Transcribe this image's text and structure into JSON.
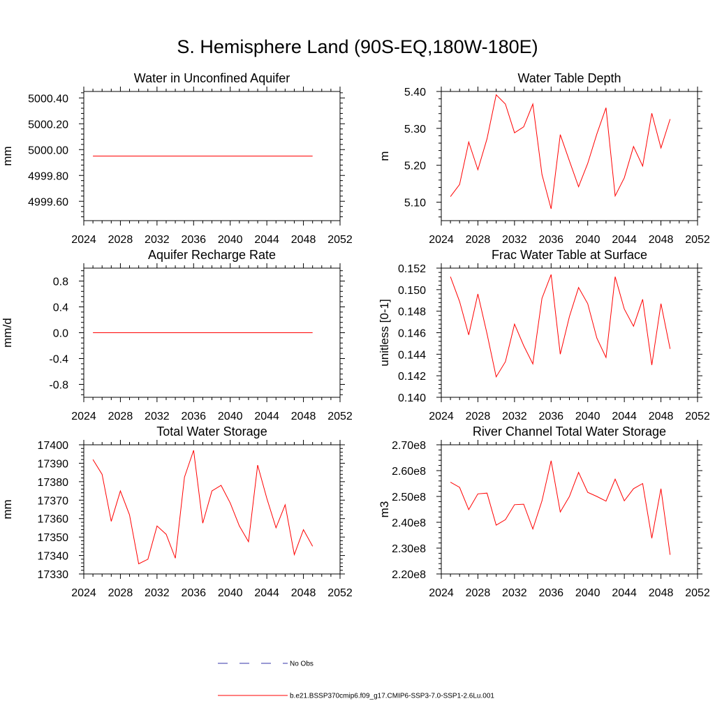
{
  "title": "S. Hemisphere Land (90S-EQ,180W-180E)",
  "colors": {
    "model_line": "#ff0000",
    "obs_line": "#3333aa",
    "axis": "#000000"
  },
  "legend": [
    {
      "label": "No Obs",
      "style": "dashed",
      "color": "#3333aa"
    },
    {
      "label": "b.e21.BSSP370cmip6.f09_g17.CMIP6-SSP3-7.0-SSP1-2.6Lu.001",
      "style": "solid",
      "color": "#ff0000"
    }
  ],
  "chart_data": [
    {
      "type": "line",
      "title": "Water in Unconfined Aquifer",
      "ylabel": "mm",
      "xlim": [
        2024,
        2052
      ],
      "ylim": [
        4999.45,
        5000.45
      ],
      "xticks": [
        2024,
        2028,
        2032,
        2036,
        2040,
        2044,
        2048,
        2052
      ],
      "yticks": [
        4999.6,
        4999.8,
        5000.0,
        5000.2,
        5000.4
      ],
      "ytick_labels": [
        "4999.60",
        "4999.80",
        "5000.00",
        "5000.20",
        "5000.40"
      ],
      "x": [
        2025,
        2026,
        2027,
        2028,
        2029,
        2030,
        2031,
        2032,
        2033,
        2034,
        2035,
        2036,
        2037,
        2038,
        2039,
        2040,
        2041,
        2042,
        2043,
        2044,
        2045,
        2046,
        2047,
        2048,
        2049
      ],
      "series": [
        {
          "name": "b.e21.BSSP370cmip6.f09_g17.CMIP6-SSP3-7.0-SSP1-2.6Lu.001",
          "values": [
            4999.95,
            4999.95,
            4999.95,
            4999.95,
            4999.95,
            4999.95,
            4999.95,
            4999.95,
            4999.95,
            4999.95,
            4999.95,
            4999.95,
            4999.95,
            4999.95,
            4999.95,
            4999.95,
            4999.95,
            4999.95,
            4999.95,
            4999.95,
            4999.95,
            4999.95,
            4999.95,
            4999.95,
            4999.95
          ]
        }
      ]
    },
    {
      "type": "line",
      "title": "Water Table Depth",
      "ylabel": "m",
      "xlim": [
        2024,
        2052
      ],
      "ylim": [
        5.05,
        5.4
      ],
      "xticks": [
        2024,
        2028,
        2032,
        2036,
        2040,
        2044,
        2048,
        2052
      ],
      "yticks": [
        5.1,
        5.2,
        5.3,
        5.4
      ],
      "ytick_labels": [
        "5.10",
        "5.20",
        "5.30",
        "5.40"
      ],
      "x": [
        2025,
        2026,
        2027,
        2028,
        2029,
        2030,
        2031,
        2032,
        2033,
        2034,
        2035,
        2036,
        2037,
        2038,
        2039,
        2040,
        2041,
        2042,
        2043,
        2044,
        2045,
        2046,
        2047,
        2048,
        2049
      ],
      "series": [
        {
          "name": "b.e21.BSSP370cmip6.f09_g17.CMIP6-SSP3-7.0-SSP1-2.6Lu.001",
          "values": [
            5.115,
            5.148,
            5.263,
            5.188,
            5.272,
            5.391,
            5.366,
            5.288,
            5.304,
            5.366,
            5.175,
            5.082,
            5.283,
            5.212,
            5.142,
            5.205,
            5.285,
            5.356,
            5.117,
            5.166,
            5.251,
            5.198,
            5.341,
            5.247,
            5.325
          ]
        }
      ]
    },
    {
      "type": "line",
      "title": "Aquifer Recharge Rate",
      "ylabel": "mm/d",
      "xlim": [
        2024,
        2052
      ],
      "ylim": [
        -1.0,
        1.0
      ],
      "xticks": [
        2024,
        2028,
        2032,
        2036,
        2040,
        2044,
        2048,
        2052
      ],
      "yticks": [
        -0.8,
        -0.4,
        0.0,
        0.4,
        0.8
      ],
      "ytick_labels": [
        "-0.8",
        "-0.4",
        "0.0",
        "0.4",
        "0.8"
      ],
      "x": [
        2025,
        2026,
        2027,
        2028,
        2029,
        2030,
        2031,
        2032,
        2033,
        2034,
        2035,
        2036,
        2037,
        2038,
        2039,
        2040,
        2041,
        2042,
        2043,
        2044,
        2045,
        2046,
        2047,
        2048,
        2049
      ],
      "series": [
        {
          "name": "b.e21.BSSP370cmip6.f09_g17.CMIP6-SSP3-7.0-SSP1-2.6Lu.001",
          "values": [
            0,
            0,
            0,
            0,
            0,
            0,
            0,
            0,
            0,
            0,
            0,
            0,
            0,
            0,
            0,
            0,
            0,
            0,
            0,
            0,
            0,
            0,
            0,
            0,
            0
          ]
        }
      ]
    },
    {
      "type": "line",
      "title": "Frac Water Table at Surface",
      "ylabel": "unitless [0-1]",
      "xlim": [
        2024,
        2052
      ],
      "ylim": [
        0.14,
        0.152
      ],
      "xticks": [
        2024,
        2028,
        2032,
        2036,
        2040,
        2044,
        2048,
        2052
      ],
      "yticks": [
        0.14,
        0.142,
        0.144,
        0.146,
        0.148,
        0.15,
        0.152
      ],
      "ytick_labels": [
        "0.140",
        "0.142",
        "0.144",
        "0.146",
        "0.148",
        "0.150",
        "0.152"
      ],
      "x": [
        2025,
        2026,
        2027,
        2028,
        2029,
        2030,
        2031,
        2032,
        2033,
        2034,
        2035,
        2036,
        2037,
        2038,
        2039,
        2040,
        2041,
        2042,
        2043,
        2044,
        2045,
        2046,
        2047,
        2048,
        2049
      ],
      "series": [
        {
          "name": "b.e21.BSSP370cmip6.f09_g17.CMIP6-SSP3-7.0-SSP1-2.6Lu.001",
          "values": [
            0.1512,
            0.1489,
            0.1458,
            0.1496,
            0.1459,
            0.1419,
            0.1433,
            0.1468,
            0.1448,
            0.1431,
            0.1492,
            0.1514,
            0.144,
            0.1475,
            0.1502,
            0.1487,
            0.1455,
            0.1437,
            0.1512,
            0.1482,
            0.1466,
            0.1491,
            0.143,
            0.1487,
            0.1445
          ]
        }
      ]
    },
    {
      "type": "line",
      "title": "Total Water Storage",
      "ylabel": "mm",
      "xlim": [
        2024,
        2052
      ],
      "ylim": [
        17330,
        17400
      ],
      "xticks": [
        2024,
        2028,
        2032,
        2036,
        2040,
        2044,
        2048,
        2052
      ],
      "yticks": [
        17330,
        17340,
        17350,
        17360,
        17370,
        17380,
        17390,
        17400
      ],
      "ytick_labels": [
        "17330",
        "17340",
        "17350",
        "17360",
        "17370",
        "17380",
        "17390",
        "17400"
      ],
      "x": [
        2025,
        2026,
        2027,
        2028,
        2029,
        2030,
        2031,
        2032,
        2033,
        2034,
        2035,
        2036,
        2037,
        2038,
        2039,
        2040,
        2041,
        2042,
        2043,
        2044,
        2045,
        2046,
        2047,
        2048,
        2049
      ],
      "series": [
        {
          "name": "b.e21.BSSP370cmip6.f09_g17.CMIP6-SSP3-7.0-SSP1-2.6Lu.001",
          "values": [
            17392,
            17384,
            17358.5,
            17375,
            17362,
            17335.5,
            17338,
            17356,
            17351.5,
            17338.5,
            17382.5,
            17397,
            17357.5,
            17375,
            17378,
            17368.5,
            17356,
            17347.5,
            17389,
            17371,
            17355,
            17367.5,
            17340.5,
            17354,
            17345
          ]
        }
      ]
    },
    {
      "type": "line",
      "title": "River Channel Total Water Storage",
      "ylabel": "m3",
      "xlim": [
        2024,
        2052
      ],
      "ylim": [
        220000000,
        270000000
      ],
      "xticks": [
        2024,
        2028,
        2032,
        2036,
        2040,
        2044,
        2048,
        2052
      ],
      "yticks": [
        220000000,
        230000000,
        240000000,
        250000000,
        260000000,
        270000000
      ],
      "ytick_labels": [
        "2.20e8",
        "2.30e8",
        "2.40e8",
        "2.50e8",
        "2.60e8",
        "2.70e8"
      ],
      "x": [
        2025,
        2026,
        2027,
        2028,
        2029,
        2030,
        2031,
        2032,
        2033,
        2034,
        2035,
        2036,
        2037,
        2038,
        2039,
        2040,
        2041,
        2042,
        2043,
        2044,
        2045,
        2046,
        2047,
        2048,
        2049
      ],
      "series": [
        {
          "name": "b.e21.BSSP370cmip6.f09_g17.CMIP6-SSP3-7.0-SSP1-2.6Lu.001",
          "values": [
            255500000,
            253500000,
            244900000,
            251000000,
            251300000,
            238900000,
            241000000,
            246800000,
            247000000,
            237400000,
            248300000,
            263800000,
            244000000,
            250000000,
            259300000,
            251600000,
            250000000,
            248200000,
            256700000,
            248300000,
            253000000,
            255000000,
            233800000,
            253000000,
            227400000
          ]
        }
      ]
    }
  ]
}
